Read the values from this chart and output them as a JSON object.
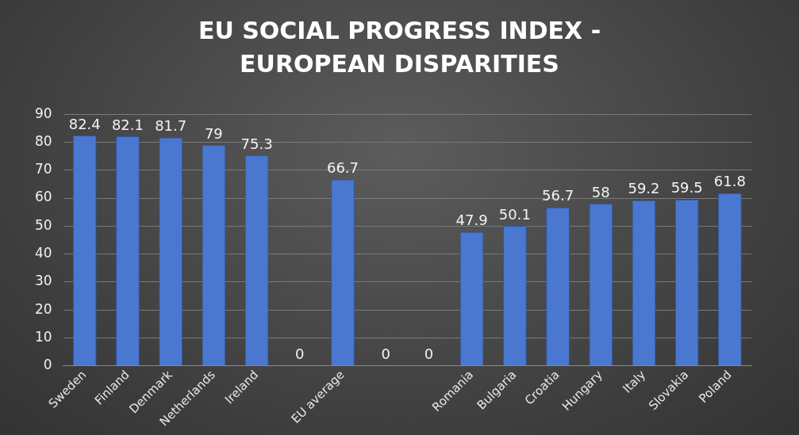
{
  "chart_data": {
    "type": "bar",
    "title": "EU SOCIAL PROGRESS INDEX - EUROPEAN DISPARITIES",
    "categories": [
      "Sweden",
      "Finland",
      "Denmark",
      "Netherlands",
      "Ireland",
      null,
      "EU average",
      null,
      null,
      "Romania",
      "Bulgaria",
      "Croatia",
      "Hungary",
      "Italy",
      "Slovakia",
      "Poland"
    ],
    "values": [
      82.4,
      82.1,
      81.7,
      79,
      75.3,
      0,
      66.7,
      0,
      0,
      47.9,
      50.1,
      56.7,
      58,
      59.2,
      59.5,
      61.8
    ],
    "color": "#4a78d0",
    "ylim": [
      0,
      90
    ],
    "yticks": [
      0,
      10,
      20,
      30,
      40,
      50,
      60,
      70,
      80,
      90
    ],
    "grid": "y",
    "data_labels": true
  }
}
